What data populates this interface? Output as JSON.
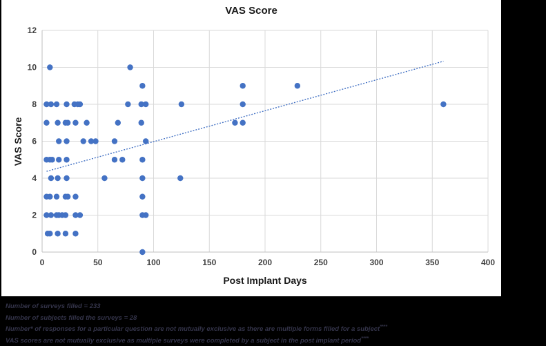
{
  "chart": {
    "title": "VAS Score",
    "x_axis_title": "Post Implant Days",
    "y_axis_title": "VAS Score"
  },
  "chart_data": {
    "type": "scatter",
    "title": "VAS Score",
    "xlabel": "Post Implant Days",
    "ylabel": "VAS Score",
    "xlim": [
      0,
      400
    ],
    "ylim": [
      0,
      12
    ],
    "x_ticks": [
      0,
      50,
      100,
      150,
      200,
      250,
      300,
      350,
      400
    ],
    "y_ticks": [
      0,
      2,
      4,
      6,
      8,
      10,
      12
    ],
    "grid": true,
    "legend": "none",
    "colors": {
      "point": "#4472C4",
      "trendline": "#4472C4",
      "gridline": "#D9D9D9",
      "axis_line": "#BFBFBF",
      "tick_text": "#404040"
    },
    "points": [
      [
        7,
        10
      ],
      [
        79,
        10
      ],
      [
        90,
        9
      ],
      [
        180,
        9
      ],
      [
        229,
        9
      ],
      [
        4,
        8
      ],
      [
        8,
        8
      ],
      [
        13,
        8
      ],
      [
        22,
        8
      ],
      [
        29,
        8
      ],
      [
        32,
        8
      ],
      [
        34,
        8
      ],
      [
        77,
        8
      ],
      [
        89,
        8
      ],
      [
        93,
        8
      ],
      [
        125,
        8
      ],
      [
        180,
        8
      ],
      [
        360,
        8
      ],
      [
        4,
        7
      ],
      [
        14,
        7
      ],
      [
        21,
        7
      ],
      [
        23,
        7
      ],
      [
        30,
        7
      ],
      [
        40,
        7
      ],
      [
        68,
        7
      ],
      [
        89,
        7
      ],
      [
        173,
        7
      ],
      [
        180,
        7
      ],
      [
        15,
        6
      ],
      [
        22,
        6
      ],
      [
        37,
        6
      ],
      [
        44,
        6
      ],
      [
        48,
        6
      ],
      [
        65,
        6
      ],
      [
        93,
        6
      ],
      [
        4,
        5
      ],
      [
        7,
        5
      ],
      [
        9,
        5
      ],
      [
        15,
        5
      ],
      [
        22,
        5
      ],
      [
        65,
        5
      ],
      [
        72,
        5
      ],
      [
        90,
        5
      ],
      [
        8,
        4
      ],
      [
        14,
        4
      ],
      [
        22,
        4
      ],
      [
        56,
        4
      ],
      [
        90,
        4
      ],
      [
        124,
        4
      ],
      [
        4,
        3
      ],
      [
        7,
        3
      ],
      [
        13,
        3
      ],
      [
        21,
        3
      ],
      [
        23,
        3
      ],
      [
        30,
        3
      ],
      [
        90,
        3
      ],
      [
        4,
        2
      ],
      [
        8,
        2
      ],
      [
        13,
        2
      ],
      [
        15,
        2
      ],
      [
        18,
        2
      ],
      [
        21,
        2
      ],
      [
        30,
        2
      ],
      [
        34,
        2
      ],
      [
        90,
        2
      ],
      [
        93,
        2
      ],
      [
        5,
        1
      ],
      [
        7,
        1
      ],
      [
        14,
        1
      ],
      [
        21,
        1
      ],
      [
        30,
        1
      ],
      [
        90,
        0
      ]
    ],
    "trendline": {
      "style": "dotted",
      "x_start": 4,
      "y_start": 4.37,
      "x_end": 360,
      "y_end": 10.33
    }
  },
  "footnotes": {
    "lines": [
      {
        "text": "Number of surveys filled = 233",
        "sup": ""
      },
      {
        "text": "Number of subjects filled the surveys = 28",
        "sup": ""
      },
      {
        "text": "Number* of responses for a particular question are not mutually exclusive as there are multiple forms filled for a subject",
        "sup": "****"
      },
      {
        "text": "VAS scores are not mutually exclusive as multiple surveys were completed by a subject in the post implant period",
        "sup": "****"
      }
    ]
  }
}
